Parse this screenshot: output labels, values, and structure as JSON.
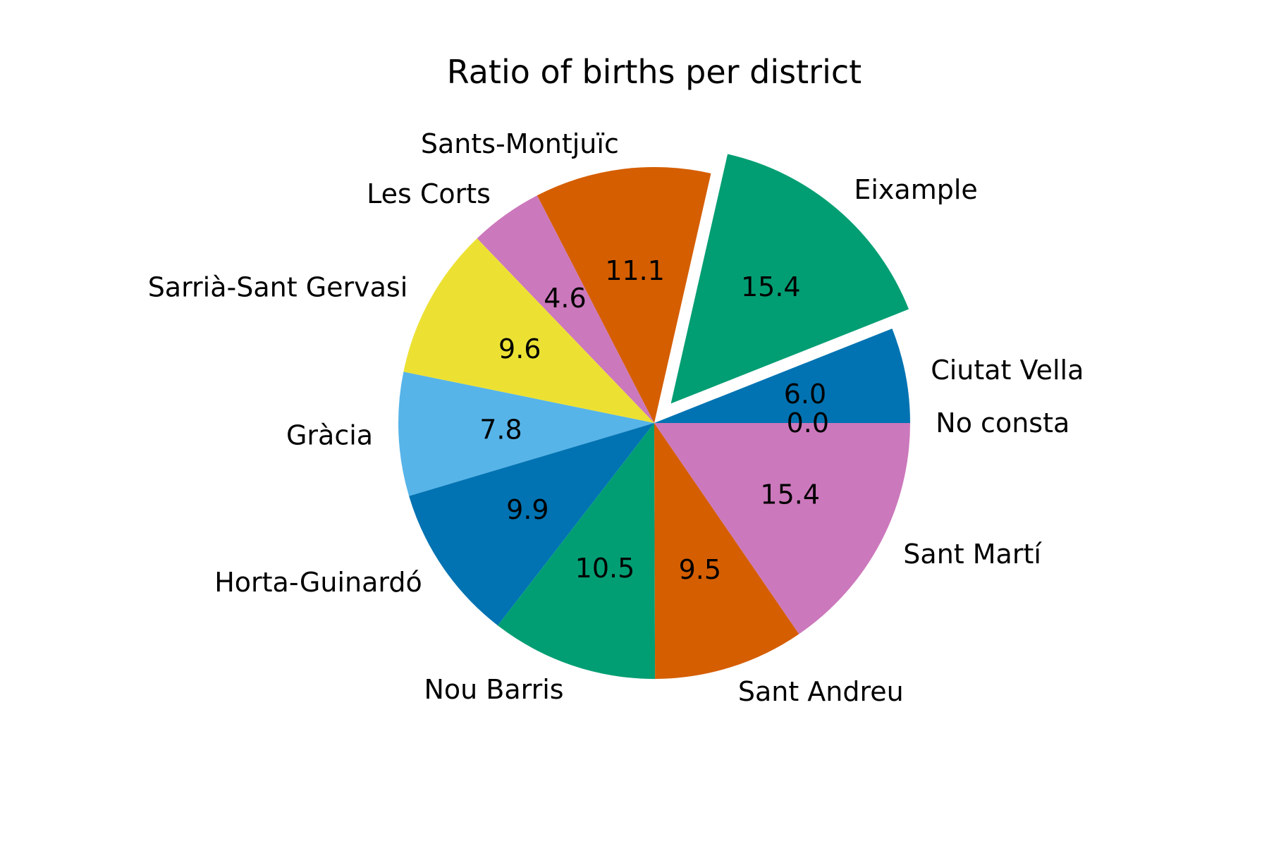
{
  "chart_data": {
    "type": "pie",
    "title": "Ratio of births per district",
    "start_angle_deg": 0,
    "direction": "counterclockwise",
    "value_format": "one-decimal",
    "slices": [
      {
        "label": "Ciutat Vella",
        "value": 6.0,
        "pct_text": "6.0",
        "color": "#0173b2",
        "exploded": false
      },
      {
        "label": "Eixample",
        "value": 15.4,
        "pct_text": "15.4",
        "color": "#029e73",
        "exploded": true
      },
      {
        "label": "Sants-Montjuïc",
        "value": 11.1,
        "pct_text": "11.1",
        "color": "#d55e00",
        "exploded": false
      },
      {
        "label": "Les Corts",
        "value": 4.6,
        "pct_text": "4.6",
        "color": "#cc78bc",
        "exploded": false
      },
      {
        "label": "Sarrià-Sant Gervasi",
        "value": 9.6,
        "pct_text": "9.6",
        "color": "#ece133",
        "exploded": false
      },
      {
        "label": "Gràcia",
        "value": 7.8,
        "pct_text": "7.8",
        "color": "#56b4e9",
        "exploded": false
      },
      {
        "label": "Horta-Guinardó",
        "value": 9.9,
        "pct_text": "9.9",
        "color": "#0173b2",
        "exploded": false
      },
      {
        "label": "Nou Barris",
        "value": 10.5,
        "pct_text": "10.5",
        "color": "#029e73",
        "exploded": false
      },
      {
        "label": "Sant Andreu",
        "value": 9.5,
        "pct_text": "9.5",
        "color": "#d55e00",
        "exploded": false
      },
      {
        "label": "Sant Martí",
        "value": 15.4,
        "pct_text": "15.4",
        "color": "#cc78bc",
        "exploded": false
      },
      {
        "label": "No consta",
        "value": 0.0,
        "pct_text": "0.0",
        "color": "#ece133",
        "exploded": false
      }
    ]
  }
}
